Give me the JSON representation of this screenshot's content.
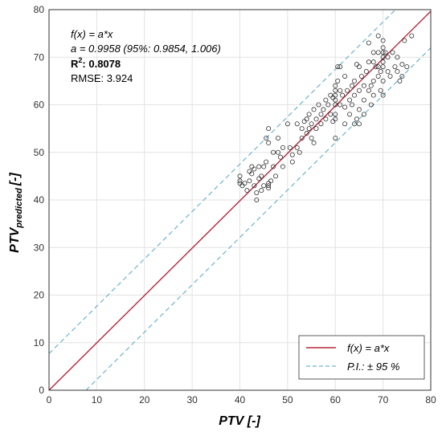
{
  "chart_data": {
    "type": "scatter",
    "xlabel": "PTV [-]",
    "ylabel_main": "PTV",
    "ylabel_sub": "predicted",
    "ylabel_unit": "[-]",
    "xlim": [
      0,
      80
    ],
    "ylim": [
      0,
      80
    ],
    "xticks": [
      "0",
      "10",
      "20",
      "30",
      "40",
      "50",
      "60",
      "70",
      "80"
    ],
    "yticks": [
      "0",
      "10",
      "20",
      "30",
      "40",
      "50",
      "60",
      "70",
      "80"
    ],
    "grid": true,
    "legend_position": "bottom-right",
    "annotations": {
      "line1": "f(x) = a*x",
      "line2": "a = 0.9958 (95%: 0.9854, 1.006)",
      "r2_label": "R",
      "r2_sup": "2",
      "r2_value": ": 0.8078",
      "rmse": "RMSE: 3.924"
    },
    "fit": {
      "name": "f(x) = a*x",
      "slope": 0.9958,
      "color": "#b5283b"
    },
    "prediction_interval": {
      "name": "P.I.: ± 95 %",
      "offset": 7.7,
      "color": "#6fb3cf"
    },
    "points": [
      [
        40,
        45
      ],
      [
        40,
        44
      ],
      [
        40,
        43.5
      ],
      [
        40.5,
        43
      ],
      [
        41,
        43.5
      ],
      [
        41.5,
        42
      ],
      [
        42,
        44
      ],
      [
        42,
        46
      ],
      [
        42.5,
        47
      ],
      [
        42.5,
        45.5
      ],
      [
        43,
        46.5
      ],
      [
        43,
        43
      ],
      [
        43.5,
        41.5
      ],
      [
        43.5,
        40
      ],
      [
        44,
        44.5
      ],
      [
        44,
        47
      ],
      [
        44.5,
        45
      ],
      [
        44.5,
        42
      ],
      [
        45,
        47
      ],
      [
        45,
        43
      ],
      [
        45.5,
        48
      ],
      [
        45.5,
        53
      ],
      [
        46,
        55
      ],
      [
        46,
        52
      ],
      [
        46,
        43.5
      ],
      [
        46,
        43
      ],
      [
        46,
        42.5
      ],
      [
        46.5,
        44
      ],
      [
        47,
        50
      ],
      [
        47,
        47
      ],
      [
        47.5,
        45
      ],
      [
        48,
        53
      ],
      [
        48,
        50
      ],
      [
        48.5,
        49
      ],
      [
        49,
        51
      ],
      [
        49,
        47
      ],
      [
        50,
        56
      ],
      [
        50.5,
        51
      ],
      [
        51,
        49.5
      ],
      [
        51,
        48
      ],
      [
        52,
        51
      ],
      [
        52,
        56
      ],
      [
        52.5,
        50
      ],
      [
        53,
        55
      ],
      [
        53,
        53
      ],
      [
        53.5,
        56.5
      ],
      [
        54,
        57
      ],
      [
        54,
        54
      ],
      [
        54.5,
        58
      ],
      [
        54.5,
        55
      ],
      [
        55,
        56
      ],
      [
        55,
        53
      ],
      [
        55.5,
        59
      ],
      [
        55.5,
        52
      ],
      [
        56,
        57
      ],
      [
        56,
        55
      ],
      [
        56.5,
        60
      ],
      [
        57,
        58
      ],
      [
        57,
        56
      ],
      [
        57.5,
        59
      ],
      [
        58,
        61
      ],
      [
        58,
        57
      ],
      [
        58.5,
        60
      ],
      [
        59,
        62
      ],
      [
        59,
        58
      ],
      [
        59.5,
        61.5
      ],
      [
        59.5,
        56.5
      ],
      [
        60,
        64
      ],
      [
        60,
        63
      ],
      [
        60,
        62
      ],
      [
        60,
        61
      ],
      [
        60,
        60
      ],
      [
        60,
        58
      ],
      [
        60,
        57
      ],
      [
        60,
        53
      ],
      [
        60.5,
        68
      ],
      [
        60.5,
        65
      ],
      [
        61,
        68
      ],
      [
        61,
        63
      ],
      [
        61,
        60
      ],
      [
        61.5,
        62
      ],
      [
        62,
        66
      ],
      [
        62,
        59.5
      ],
      [
        62,
        56
      ],
      [
        62.5,
        63
      ],
      [
        63,
        61
      ],
      [
        63,
        58
      ],
      [
        63.5,
        64
      ],
      [
        63.5,
        60
      ],
      [
        64,
        65
      ],
      [
        64,
        62
      ],
      [
        64,
        56
      ],
      [
        64.5,
        68.5
      ],
      [
        64.5,
        57
      ],
      [
        65,
        68
      ],
      [
        65,
        63
      ],
      [
        65,
        59
      ],
      [
        65,
        56
      ],
      [
        65.5,
        66
      ],
      [
        66,
        64
      ],
      [
        66,
        61
      ],
      [
        66,
        58
      ],
      [
        66.5,
        67
      ],
      [
        67,
        73
      ],
      [
        67,
        69
      ],
      [
        67,
        63
      ],
      [
        67.5,
        64
      ],
      [
        67.5,
        60
      ],
      [
        68,
        71
      ],
      [
        68,
        69
      ],
      [
        68,
        65
      ],
      [
        68,
        62
      ],
      [
        68.5,
        68
      ],
      [
        69,
        74.5
      ],
      [
        69,
        71
      ],
      [
        69,
        68
      ],
      [
        69,
        66
      ],
      [
        69.5,
        67
      ],
      [
        69.5,
        63
      ],
      [
        70,
        73.5
      ],
      [
        70,
        72
      ],
      [
        70,
        71
      ],
      [
        70,
        70
      ],
      [
        70,
        69
      ],
      [
        70,
        68
      ],
      [
        70,
        65
      ],
      [
        70,
        62
      ],
      [
        70.5,
        71
      ],
      [
        71,
        70
      ],
      [
        71,
        67
      ],
      [
        71.5,
        66
      ],
      [
        72,
        71
      ],
      [
        72.5,
        68
      ],
      [
        73,
        70
      ],
      [
        73,
        67
      ],
      [
        73.5,
        65
      ],
      [
        74,
        68.5
      ],
      [
        74,
        66
      ],
      [
        74.5,
        73.5
      ],
      [
        75,
        68
      ],
      [
        76,
        74.5
      ]
    ]
  }
}
